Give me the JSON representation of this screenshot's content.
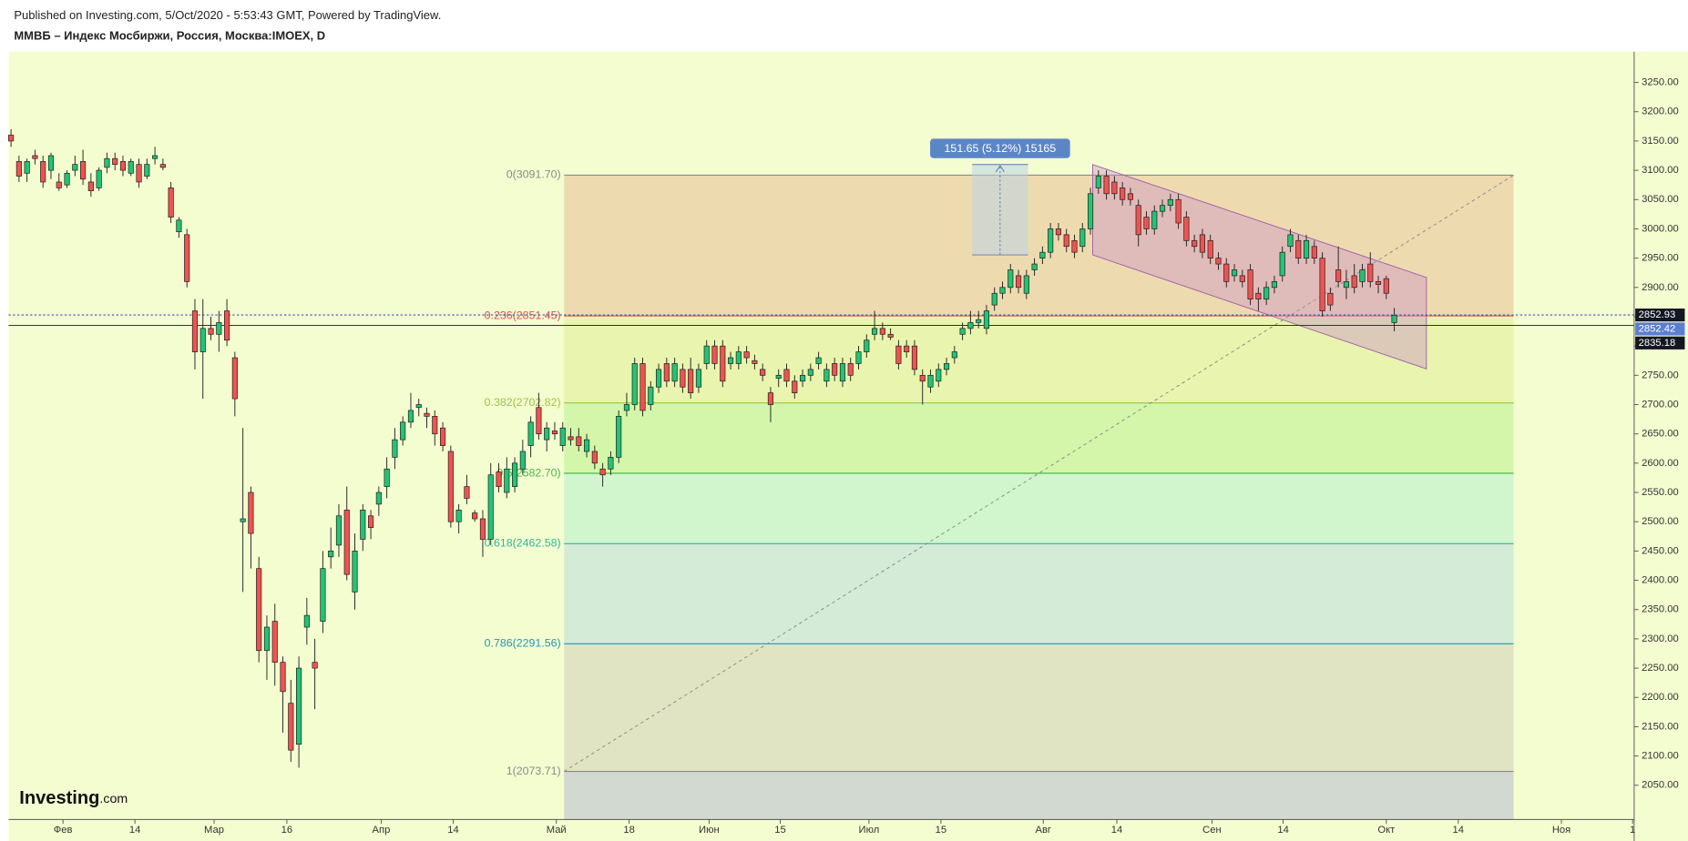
{
  "header": {
    "published": "Published on Investing.com, 5/Oct/2020 - 5:53:43 GMT, Powered by TradingView.",
    "symbol": "ММВБ – Индекс Мосбиржи, Россия, Москва:IMOEX, D"
  },
  "logo": "Investing",
  "logo_suffix": ".com",
  "chart_data": {
    "type": "candlestick",
    "up_color": "#22c473",
    "down_color": "#ef5350",
    "ylim": [
      1991.6,
      3302.6
    ],
    "yticks": [
      {
        "value": 2050,
        "label": "2050.00"
      },
      {
        "value": 2100,
        "label": "2100.00"
      },
      {
        "value": 2150,
        "label": "2150.00"
      },
      {
        "value": 2200,
        "label": "2200.00"
      },
      {
        "value": 2250,
        "label": "2250.00"
      },
      {
        "value": 2300,
        "label": "2300.00"
      },
      {
        "value": 2350,
        "label": "2350.00"
      },
      {
        "value": 2400,
        "label": "2400.00"
      },
      {
        "value": 2450,
        "label": "2450.00"
      },
      {
        "value": 2500,
        "label": "2500.00"
      },
      {
        "value": 2550,
        "label": "2550.00"
      },
      {
        "value": 2600,
        "label": "2600.00"
      },
      {
        "value": 2650,
        "label": "2650.00"
      },
      {
        "value": 2700,
        "label": "2700.00"
      },
      {
        "value": 2750,
        "label": "2750.00"
      },
      {
        "value": 2800,
        "label": "2800.00"
      },
      {
        "value": 2850,
        "label": "2850.00"
      },
      {
        "value": 2900,
        "label": "2900.00"
      },
      {
        "value": 2950,
        "label": "2950.00"
      },
      {
        "value": 3000,
        "label": "3000.00"
      },
      {
        "value": 3050,
        "label": "3050.00"
      },
      {
        "value": 3100,
        "label": "3100.00"
      },
      {
        "value": 3150,
        "label": "3150.00"
      },
      {
        "value": 3200,
        "label": "3200.00"
      },
      {
        "value": 3250,
        "label": "3250.00"
      }
    ],
    "xlim": [
      -0.3,
      203
    ],
    "xticks": [
      {
        "value": 6.5,
        "label": "Фев"
      },
      {
        "value": 15.5,
        "label": "14"
      },
      {
        "value": 25.4,
        "label": "Мар"
      },
      {
        "value": 34.5,
        "label": "16"
      },
      {
        "value": 46.3,
        "label": "Апр"
      },
      {
        "value": 55.3,
        "label": "14"
      },
      {
        "value": 68.2,
        "label": "Май"
      },
      {
        "value": 77.3,
        "label": "18"
      },
      {
        "value": 87.3,
        "label": "Июн"
      },
      {
        "value": 96.2,
        "label": "15"
      },
      {
        "value": 107.3,
        "label": "Июл"
      },
      {
        "value": 116.3,
        "label": "15"
      },
      {
        "value": 129.1,
        "label": "Авг"
      },
      {
        "value": 138.3,
        "label": "14"
      },
      {
        "value": 150.2,
        "label": "Сен"
      },
      {
        "value": 159.1,
        "label": "14"
      },
      {
        "value": 172,
        "label": "Окт"
      },
      {
        "value": 181,
        "label": "14"
      },
      {
        "value": 193.9,
        "label": "Ноя"
      },
      {
        "value": 202.8,
        "label": "1"
      }
    ],
    "candles": [
      [
        3160,
        3170,
        3140,
        3150
      ],
      [
        3115,
        3125,
        3080,
        3090
      ],
      [
        3095,
        3120,
        3080,
        3115
      ],
      [
        3125,
        3135,
        3110,
        3120
      ],
      [
        3115,
        3125,
        3070,
        3080
      ],
      [
        3100,
        3130,
        3085,
        3125
      ],
      [
        3080,
        3095,
        3065,
        3070
      ],
      [
        3075,
        3100,
        3070,
        3095
      ],
      [
        3100,
        3125,
        3090,
        3110
      ],
      [
        3115,
        3135,
        3075,
        3085
      ],
      [
        3080,
        3095,
        3055,
        3065
      ],
      [
        3070,
        3105,
        3065,
        3100
      ],
      [
        3105,
        3130,
        3095,
        3120
      ],
      [
        3120,
        3130,
        3100,
        3110
      ],
      [
        3115,
        3125,
        3090,
        3100
      ],
      [
        3095,
        3120,
        3090,
        3115
      ],
      [
        3110,
        3120,
        3070,
        3080
      ],
      [
        3090,
        3120,
        3085,
        3110
      ],
      [
        3120,
        3140,
        3110,
        3125
      ],
      [
        3110,
        3120,
        3100,
        3105
      ],
      [
        3070,
        3080,
        3010,
        3020
      ],
      [
        2995,
        3020,
        2985,
        3015
      ],
      [
        2990,
        3000,
        2900,
        2910
      ],
      [
        2860,
        2880,
        2760,
        2790
      ],
      [
        2790,
        2880,
        2710,
        2830
      ],
      [
        2830,
        2850,
        2810,
        2820
      ],
      [
        2820,
        2860,
        2790,
        2840
      ],
      [
        2860,
        2880,
        2800,
        2810
      ],
      [
        2780,
        2790,
        2680,
        2710
      ],
      [
        2500,
        2660,
        2380,
        2505
      ],
      [
        2550,
        2560,
        2420,
        2480
      ],
      [
        2420,
        2440,
        2260,
        2280
      ],
      [
        2280,
        2340,
        2230,
        2320
      ],
      [
        2330,
        2360,
        2220,
        2260
      ],
      [
        2260,
        2270,
        2140,
        2210
      ],
      [
        2190,
        2230,
        2090,
        2110
      ],
      [
        2120,
        2270,
        2080,
        2250
      ],
      [
        2320,
        2370,
        2290,
        2340
      ],
      [
        2260,
        2300,
        2180,
        2250
      ],
      [
        2330,
        2450,
        2310,
        2420
      ],
      [
        2440,
        2490,
        2420,
        2450
      ],
      [
        2460,
        2530,
        2440,
        2510
      ],
      [
        2520,
        2560,
        2400,
        2410
      ],
      [
        2380,
        2480,
        2350,
        2450
      ],
      [
        2470,
        2530,
        2450,
        2520
      ],
      [
        2510,
        2520,
        2470,
        2490
      ],
      [
        2530,
        2560,
        2510,
        2550
      ],
      [
        2560,
        2610,
        2540,
        2590
      ],
      [
        2610,
        2660,
        2590,
        2640
      ],
      [
        2640,
        2680,
        2630,
        2670
      ],
      [
        2670,
        2720,
        2660,
        2690
      ],
      [
        2695,
        2710,
        2680,
        2700
      ],
      [
        2685,
        2695,
        2660,
        2680
      ],
      [
        2680,
        2690,
        2630,
        2650
      ],
      [
        2660,
        2670,
        2620,
        2630
      ],
      [
        2620,
        2630,
        2490,
        2500
      ],
      [
        2500,
        2530,
        2480,
        2520
      ],
      [
        2560,
        2580,
        2530,
        2540
      ],
      [
        2515,
        2520,
        2500,
        2505
      ],
      [
        2505,
        2520,
        2440,
        2470
      ],
      [
        2470,
        2600,
        2460,
        2580
      ],
      [
        2585,
        2600,
        2550,
        2560
      ],
      [
        2550,
        2610,
        2540,
        2590
      ],
      [
        2560,
        2610,
        2550,
        2600
      ],
      [
        2590,
        2640,
        2580,
        2620
      ],
      [
        2630,
        2680,
        2610,
        2670
      ],
      [
        2695,
        2720,
        2640,
        2650
      ],
      [
        2640,
        2670,
        2620,
        2660
      ],
      [
        2655,
        2670,
        2640,
        2650
      ],
      [
        2630,
        2670,
        2620,
        2660
      ],
      [
        2645,
        2660,
        2630,
        2640
      ],
      [
        2645,
        2660,
        2620,
        2630
      ],
      [
        2620,
        2650,
        2610,
        2640
      ],
      [
        2620,
        2630,
        2590,
        2600
      ],
      [
        2590,
        2600,
        2560,
        2580
      ],
      [
        2590,
        2620,
        2580,
        2610
      ],
      [
        2610,
        2690,
        2600,
        2680
      ],
      [
        2690,
        2720,
        2680,
        2700
      ],
      [
        2700,
        2780,
        2690,
        2770
      ],
      [
        2770,
        2780,
        2680,
        2690
      ],
      [
        2700,
        2740,
        2690,
        2730
      ],
      [
        2730,
        2770,
        2720,
        2760
      ],
      [
        2770,
        2780,
        2730,
        2740
      ],
      [
        2740,
        2780,
        2730,
        2770
      ],
      [
        2760,
        2770,
        2720,
        2730
      ],
      [
        2760,
        2780,
        2710,
        2720
      ],
      [
        2730,
        2770,
        2720,
        2760
      ],
      [
        2770,
        2810,
        2760,
        2800
      ],
      [
        2800,
        2810,
        2760,
        2770
      ],
      [
        2800,
        2810,
        2730,
        2740
      ],
      [
        2770,
        2790,
        2760,
        2780
      ],
      [
        2770,
        2800,
        2760,
        2790
      ],
      [
        2790,
        2800,
        2770,
        2780
      ],
      [
        2775,
        2785,
        2760,
        2770
      ],
      [
        2760,
        2770,
        2740,
        2750
      ],
      [
        2720,
        2730,
        2670,
        2700
      ],
      [
        2745,
        2760,
        2730,
        2750
      ],
      [
        2760,
        2770,
        2730,
        2740
      ],
      [
        2740,
        2750,
        2710,
        2720
      ],
      [
        2740,
        2760,
        2730,
        2750
      ],
      [
        2750,
        2770,
        2740,
        2760
      ],
      [
        2770,
        2790,
        2760,
        2780
      ],
      [
        2740,
        2770,
        2730,
        2760
      ],
      [
        2770,
        2780,
        2740,
        2750
      ],
      [
        2740,
        2780,
        2730,
        2770
      ],
      [
        2770,
        2780,
        2740,
        2750
      ],
      [
        2770,
        2800,
        2760,
        2790
      ],
      [
        2790,
        2820,
        2780,
        2810
      ],
      [
        2820,
        2860,
        2810,
        2830
      ],
      [
        2830,
        2840,
        2810,
        2820
      ],
      [
        2820,
        2830,
        2810,
        2815
      ],
      [
        2800,
        2810,
        2760,
        2770
      ],
      [
        2800,
        2810,
        2780,
        2790
      ],
      [
        2800,
        2810,
        2750,
        2760
      ],
      [
        2750,
        2760,
        2700,
        2740
      ],
      [
        2730,
        2760,
        2720,
        2750
      ],
      [
        2740,
        2770,
        2730,
        2760
      ],
      [
        2760,
        2780,
        2750,
        2770
      ],
      [
        2780,
        2800,
        2770,
        2790
      ],
      [
        2820,
        2840,
        2810,
        2830
      ],
      [
        2830,
        2860,
        2820,
        2840
      ],
      [
        2840,
        2860,
        2830,
        2845
      ],
      [
        2830,
        2870,
        2820,
        2860
      ],
      [
        2870,
        2900,
        2860,
        2890
      ],
      [
        2890,
        2910,
        2880,
        2900
      ],
      [
        2900,
        2940,
        2890,
        2930
      ],
      [
        2920,
        2930,
        2890,
        2900
      ],
      [
        2890,
        2930,
        2880,
        2920
      ],
      [
        2930,
        2950,
        2920,
        2940
      ],
      [
        2950,
        2970,
        2940,
        2960
      ],
      [
        2960,
        3010,
        2950,
        3000
      ],
      [
        3000,
        3010,
        2980,
        2990
      ],
      [
        2990,
        3000,
        2960,
        2970
      ],
      [
        2980,
        2990,
        2950,
        2960
      ],
      [
        2970,
        3010,
        2960,
        3000
      ],
      [
        3000,
        3070,
        2990,
        3060
      ],
      [
        3070,
        3100,
        3060,
        3090
      ],
      [
        3090,
        3100,
        3050,
        3060
      ],
      [
        3080,
        3090,
        3050,
        3060
      ],
      [
        3070,
        3080,
        3040,
        3050
      ],
      [
        3060,
        3070,
        3040,
        3050
      ],
      [
        3040,
        3050,
        2970,
        2990
      ],
      [
        3020,
        3030,
        2990,
        3000
      ],
      [
        3000,
        3040,
        2990,
        3030
      ],
      [
        3030,
        3050,
        3020,
        3040
      ],
      [
        3040,
        3060,
        3030,
        3050
      ],
      [
        3050,
        3060,
        3000,
        3010
      ],
      [
        3020,
        3030,
        2970,
        2980
      ],
      [
        2980,
        2990,
        2960,
        2970
      ],
      [
        2990,
        3000,
        2950,
        2960
      ],
      [
        2980,
        2990,
        2940,
        2950
      ],
      [
        2950,
        2960,
        2930,
        2940
      ],
      [
        2940,
        2950,
        2900,
        2910
      ],
      [
        2920,
        2940,
        2910,
        2930
      ],
      [
        2920,
        2930,
        2900,
        2910
      ],
      [
        2930,
        2940,
        2870,
        2880
      ],
      [
        2890,
        2900,
        2860,
        2880
      ],
      [
        2880,
        2910,
        2870,
        2900
      ],
      [
        2900,
        2920,
        2890,
        2910
      ],
      [
        2920,
        2970,
        2910,
        2960
      ],
      [
        2970,
        3000,
        2960,
        2990
      ],
      [
        2980,
        2990,
        2940,
        2950
      ],
      [
        2950,
        2990,
        2940,
        2980
      ],
      [
        2970,
        2980,
        2940,
        2950
      ],
      [
        2950,
        2960,
        2850,
        2860
      ],
      [
        2890,
        2900,
        2860,
        2870
      ],
      [
        2930,
        2970,
        2900,
        2910
      ],
      [
        2900,
        2930,
        2880,
        2910
      ],
      [
        2920,
        2940,
        2890,
        2900
      ],
      [
        2910,
        2940,
        2900,
        2930
      ],
      [
        2940,
        2960,
        2900,
        2910
      ],
      [
        2910,
        2920,
        2890,
        2905
      ],
      [
        2915,
        2920,
        2880,
        2890
      ],
      [
        2840,
        2865,
        2825,
        2852.42
      ]
    ],
    "fib_levels": [
      {
        "label": "0(3091.70)",
        "value": 3091.7,
        "color": "#8a8a8a",
        "fill": "#ecd3a9"
      },
      {
        "label": "0.236(2851.45)",
        "value": 2851.45,
        "color": "#e0504f",
        "fill": "#e6f2a8"
      },
      {
        "label": "0.382(2702.82)",
        "value": 2702.82,
        "color": "#9bc53a",
        "fill": "#cdf5a3"
      },
      {
        "label": "0.5(2582.70)",
        "value": 2582.7,
        "color": "#4cb84c",
        "fill": "#caf3cb"
      },
      {
        "label": "0.618(2462.58)",
        "value": 2462.58,
        "color": "#2fb59a",
        "fill": "#cde8d8"
      },
      {
        "label": "0.786(2291.56)",
        "value": 2291.56,
        "color": "#2596b5",
        "fill": "#dcdfbf"
      },
      {
        "label": "1(2073.71)",
        "value": 2073.71,
        "color": "#8a8a8a",
        "fill": "#cbd2d0"
      }
    ],
    "measure_label": "151.65 (5.12%) 15165",
    "price_labels": [
      {
        "value": 2852.93,
        "label": "2852.93",
        "color": "#131722",
        "line": "#3355cc"
      },
      {
        "value": 2852.42,
        "label": "2852.42",
        "color": "#5b7fd0"
      },
      {
        "value": 2835.18,
        "label": "2835.18",
        "color": "#131722",
        "line": "#333333"
      }
    ]
  }
}
